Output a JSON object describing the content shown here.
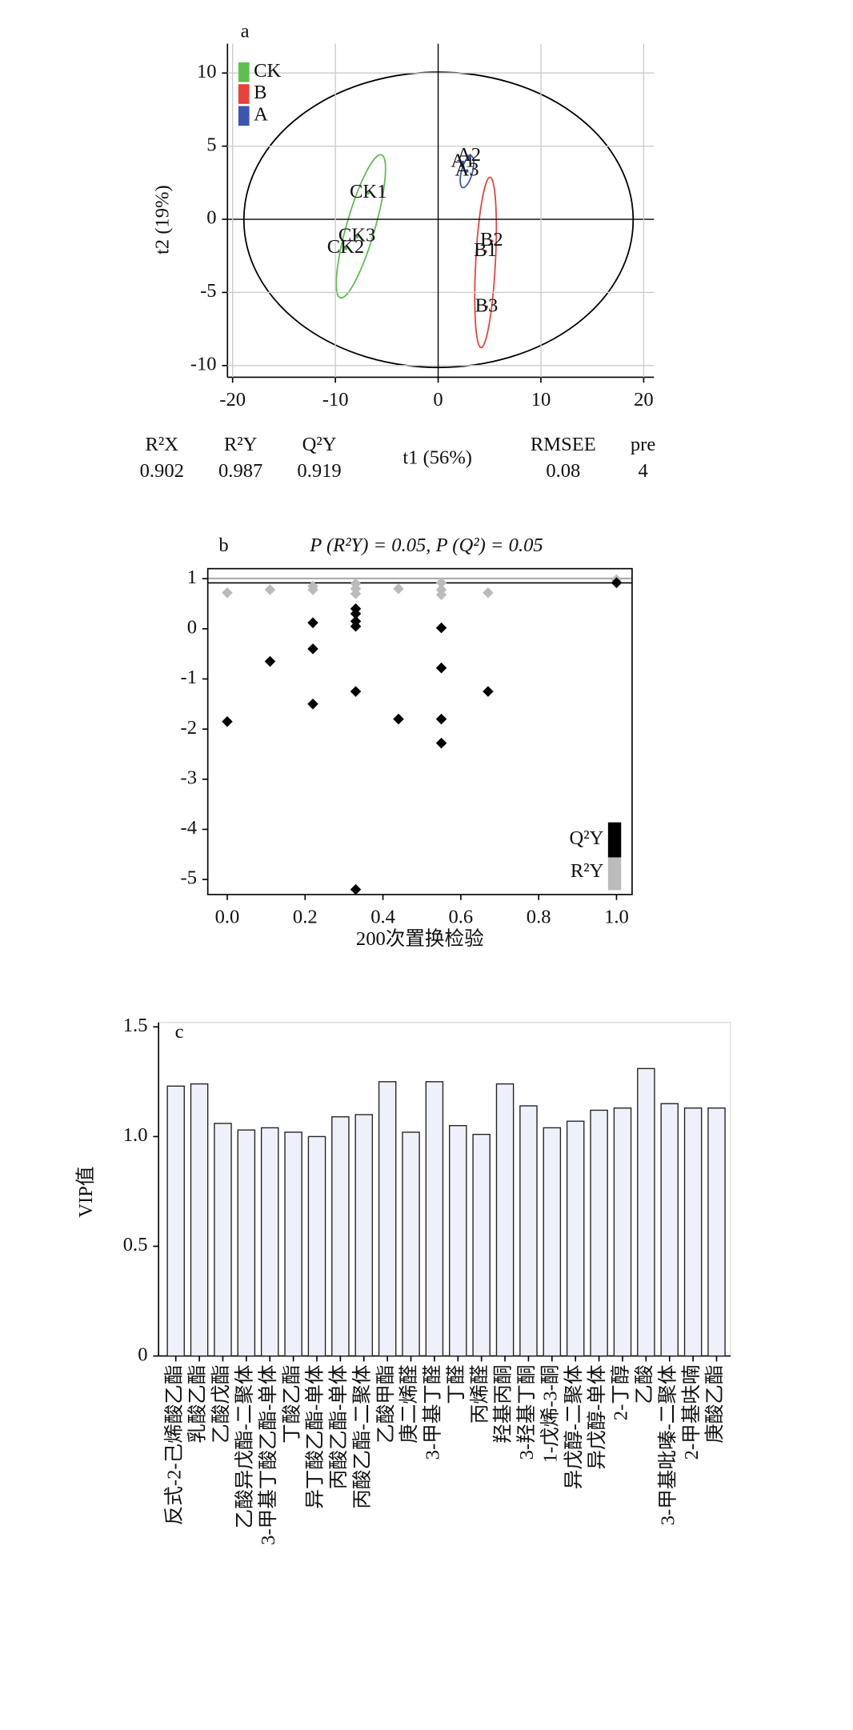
{
  "chart_data": [
    {
      "type": "scatter",
      "panel": "a",
      "ylabel": "t2 (19%)",
      "xlabel": "t1 (56%)",
      "xlim": [
        -20.5,
        21
      ],
      "xticks": [
        -20,
        -10,
        0,
        10,
        20
      ],
      "ylim": [
        -10.8,
        12
      ],
      "yticks": [
        -10,
        -5,
        0,
        5,
        10
      ],
      "grid": true,
      "legend": "top-left",
      "series": [
        {
          "name": "CK",
          "color": "#5cbf4f",
          "x": [
            -6.8,
            -7.9,
            -9.0
          ],
          "values": [
            1.8,
            -1.2,
            -2.0
          ],
          "point_labels": [
            "CK1",
            "CK3",
            "CK2"
          ]
        },
        {
          "name": "B",
          "color": "#e8423a",
          "x": [
            5.2,
            4.6,
            4.7
          ],
          "values": [
            -1.5,
            -2.2,
            -6.0
          ],
          "point_labels": [
            "B2",
            "B1",
            "B3"
          ]
        },
        {
          "name": "A",
          "color": "#3a56b0",
          "x": [
            2.4,
            3.0,
            2.8
          ],
          "values": [
            3.9,
            4.3,
            3.3
          ],
          "point_labels": [
            "A1",
            "A2",
            "A3"
          ]
        }
      ],
      "stats": [
        {
          "name": "R²X",
          "value": 0.902
        },
        {
          "name": "R²Y",
          "value": 0.987
        },
        {
          "name": "Q²Y",
          "value": 0.919
        },
        {
          "name": "RMSEE",
          "value": 0.08
        },
        {
          "name": "pre",
          "value": 4
        }
      ]
    },
    {
      "type": "scatter",
      "panel": "b",
      "title": "P (R²Y) = 0.05, P (Q²) = 0.05",
      "xlabel": "200次置换检验",
      "xlim": [
        -0.05,
        1.04
      ],
      "xticks": [
        {
          "value": 0,
          "label": "0.0"
        },
        {
          "value": 0.2,
          "label": "0.2"
        },
        {
          "value": 0.4,
          "label": "0.4"
        },
        {
          "value": 0.6,
          "label": "0.6"
        },
        {
          "value": 0.8,
          "label": "0.8"
        },
        {
          "value": 1,
          "label": "1.0"
        }
      ],
      "ylim": [
        -5.3,
        1.2
      ],
      "yticks": [
        1,
        0,
        -1,
        -2,
        -3,
        -4,
        -5
      ],
      "legend": "bottom-right",
      "series": [
        {
          "name": "R²Y",
          "color": "#bbbbbb",
          "x": [
            0,
            0.11,
            0.22,
            0.22,
            0.33,
            0.33,
            0.33,
            0.44,
            0.55,
            0.55,
            0.55,
            0.67,
            1.0
          ],
          "values": [
            0.72,
            0.78,
            0.85,
            0.78,
            0.9,
            0.8,
            0.7,
            0.8,
            0.92,
            0.78,
            0.68,
            0.72,
            0.98
          ]
        },
        {
          "name": "Q²Y",
          "color": "#000000",
          "x": [
            0,
            0.11,
            0.22,
            0.22,
            0.22,
            0.33,
            0.33,
            0.33,
            0.33,
            0.33,
            0.33,
            0.44,
            0.55,
            0.55,
            0.55,
            0.55,
            0.67,
            1.0
          ],
          "values": [
            -1.85,
            -0.65,
            0.12,
            -0.4,
            -1.5,
            0.4,
            0.3,
            0.15,
            0.05,
            -1.25,
            -5.2,
            -1.8,
            0.02,
            -0.78,
            -1.8,
            -2.28,
            -1.25,
            0.92
          ]
        }
      ]
    },
    {
      "type": "bar",
      "panel": "c",
      "ylabel": "VIP值",
      "color": "#eef0fa",
      "ylim": [
        0,
        1.52
      ],
      "yticks": [
        0,
        0.5,
        {
          "value": 1,
          "label": "1.0"
        },
        1.5
      ],
      "categories": [
        "反式-2-己烯酸乙酯",
        "乳酸乙酯",
        "乙酸戊酯",
        "乙酸异戊酯-二聚体",
        "3-甲基丁酸乙酯-单体",
        "丁酸乙酯",
        "异丁酸乙酯-单体",
        "丙酸乙酯-单体",
        "丙酸乙酯-二聚体",
        "乙酸甲酯",
        "庚二烯醛",
        "3-甲基丁醛",
        "丁醛",
        "丙烯醛",
        "羟基丙酮",
        "3-羟基丁酮",
        "1-戊烯-3-酮",
        "异戊醇-二聚体",
        "异戊醇-单体",
        "2-丁醇",
        "乙酸",
        "3-甲基吡嗪-二聚体",
        "2-甲基呋喃",
        "庚酸乙酯"
      ],
      "values": [
        1.23,
        1.24,
        1.06,
        1.03,
        1.04,
        1.02,
        1.0,
        1.09,
        1.1,
        1.25,
        1.02,
        1.25,
        1.05,
        1.01,
        1.24,
        1.14,
        1.04,
        1.07,
        1.12,
        1.13,
        1.31,
        1.15,
        1.13,
        1.13
      ]
    }
  ]
}
